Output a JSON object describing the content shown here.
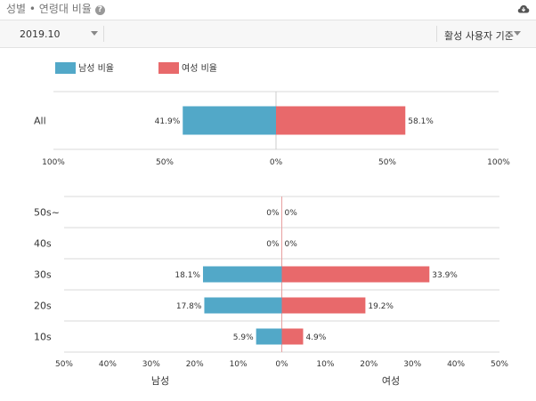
{
  "header": {
    "title": "성별 • 연령대 비율",
    "help_icon": "question-circle-icon",
    "download_icon": "cloud-download-icon"
  },
  "filters": {
    "date_value": "2019.10",
    "basis_value": "활성 사용자 기준"
  },
  "legend": {
    "male_label": "남성 비율",
    "female_label": "여성 비율"
  },
  "colors": {
    "male": "#52a8c8",
    "female": "#e8696b",
    "grid": "#d9d9d9",
    "zero_line": "#e8a0a0"
  },
  "chart_data": [
    {
      "type": "bar",
      "orientation": "horizontal-diverging",
      "categories": [
        "All"
      ],
      "series": [
        {
          "name": "남성 비율",
          "values": [
            41.9
          ],
          "labels": [
            "41.9%"
          ]
        },
        {
          "name": "여성 비율",
          "values": [
            58.1
          ],
          "labels": [
            "58.1%"
          ]
        }
      ],
      "xlim": [
        -100,
        100
      ],
      "xticks": [
        "100%",
        "50%",
        "0%",
        "50%",
        "100%"
      ]
    },
    {
      "type": "bar",
      "orientation": "horizontal-diverging",
      "categories": [
        "50s~",
        "40s",
        "30s",
        "20s",
        "10s"
      ],
      "series": [
        {
          "name": "남성 비율",
          "values": [
            0,
            0,
            18.1,
            17.8,
            5.9
          ],
          "labels": [
            "0%",
            "0%",
            "18.1%",
            "17.8%",
            "5.9%"
          ]
        },
        {
          "name": "여성 비율",
          "values": [
            0,
            0,
            33.9,
            19.2,
            4.9
          ],
          "labels": [
            "0%",
            "0%",
            "33.9%",
            "19.2%",
            "4.9%"
          ]
        }
      ],
      "xlim": [
        -50,
        50
      ],
      "xticks": [
        "50%",
        "40%",
        "30%",
        "20%",
        "10%",
        "0%",
        "10%",
        "20%",
        "30%",
        "40%",
        "50%"
      ],
      "xlabel_left": "남성",
      "xlabel_right": "여성"
    }
  ]
}
